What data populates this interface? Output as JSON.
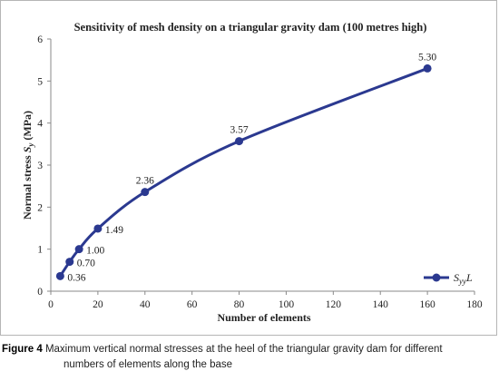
{
  "chart_data": {
    "type": "line",
    "title": "Sensitivity of mesh density on a triangular gravity dam (100 metres high)",
    "xlabel": "Number of elements",
    "ylabel": "Normal stress Sy (MPa)",
    "ylabel_parts": {
      "prefix": "Normal stress ",
      "symbol": "S",
      "subscript": "y",
      "suffix": " (MPa)"
    },
    "xlim": [
      0,
      180
    ],
    "ylim": [
      0,
      6
    ],
    "xticks": [
      0,
      20,
      40,
      60,
      80,
      100,
      120,
      140,
      160,
      180
    ],
    "yticks": [
      0,
      1,
      2,
      3,
      4,
      5,
      6
    ],
    "grid": false,
    "legend_position": "bottom-right",
    "series": [
      {
        "name": "SyyL",
        "name_parts": {
          "symbol": "S",
          "subscript": "yy",
          "suffix": "L"
        },
        "color": "#2b3990",
        "x": [
          4,
          8,
          12,
          20,
          40,
          80,
          160
        ],
        "y": [
          0.36,
          0.7,
          1.0,
          1.49,
          2.36,
          3.57,
          5.3
        ],
        "labels": [
          "0.36",
          "0.70",
          "1.00",
          "1.49",
          "2.36",
          "3.57",
          "5.30"
        ]
      }
    ]
  },
  "caption": {
    "label": "Figure 4",
    "text_line1": "Maximum vertical normal stresses at the heel of the triangular gravity dam for different",
    "text_line2": "numbers of elements along the base"
  }
}
